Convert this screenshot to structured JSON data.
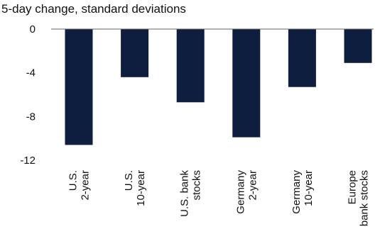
{
  "chart_data": {
    "type": "bar",
    "ylabel": "5-day change, standard deviations",
    "categories": [
      [
        "U.S.",
        "2-year"
      ],
      [
        "U.S.",
        "10-year"
      ],
      [
        "U.S. bank",
        "stocks"
      ],
      [
        "Germany",
        "2-year"
      ],
      [
        "Germany",
        "10-year"
      ],
      [
        "Europe",
        "bank stocks"
      ]
    ],
    "values": [
      -10.6,
      -4.4,
      -6.7,
      -9.9,
      -5.3,
      -3.1
    ],
    "ylim": [
      -12,
      0
    ],
    "yticks": [
      0,
      -4,
      -8,
      -12
    ],
    "bar_color": "#0d1e3f",
    "grid": false
  }
}
